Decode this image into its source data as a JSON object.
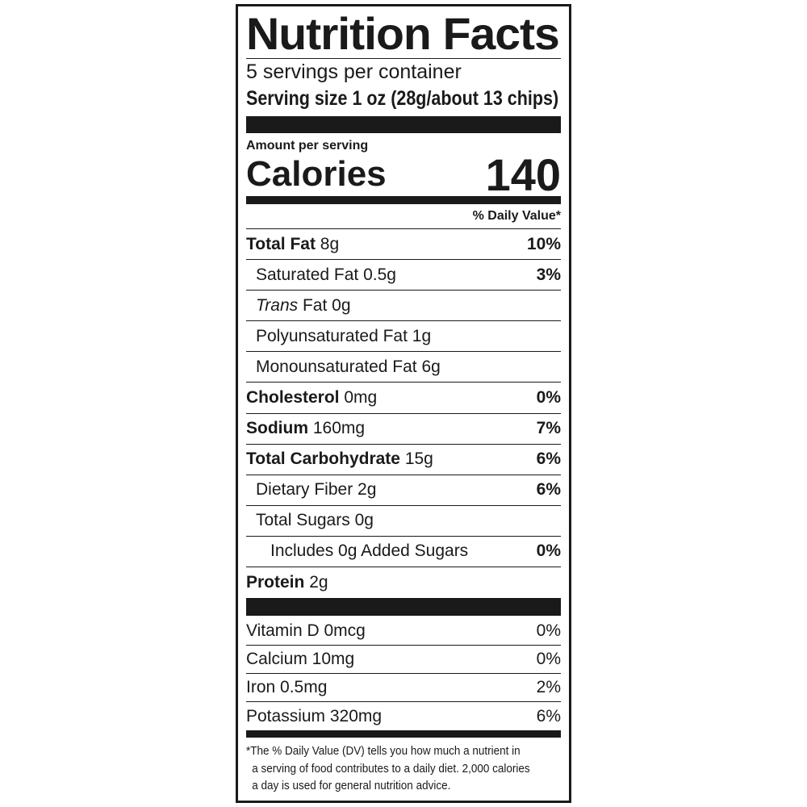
{
  "title": "Nutrition Facts",
  "servings_per_container": "5 servings per container",
  "serving_size": "Serving size 1 oz (28g/about 13 chips)",
  "amount_per_serving": "Amount per serving",
  "calories_label": "Calories",
  "calories_value": "140",
  "dv_header": "% Daily Value*",
  "nutrients": [
    {
      "name": "Total Fat",
      "amount": "8g",
      "dv": "10%",
      "bold": true,
      "indent": 0
    },
    {
      "name": "Saturated Fat",
      "amount": "0.5g",
      "dv": "3%",
      "bold": false,
      "indent": 1
    },
    {
      "name": "Trans",
      "name_suffix": "Fat",
      "amount": "0g",
      "dv": "",
      "bold": false,
      "indent": 1,
      "italic": true
    },
    {
      "name": "Polyunsaturated Fat",
      "amount": "1g",
      "dv": "",
      "bold": false,
      "indent": 1
    },
    {
      "name": "Monounsaturated Fat",
      "amount": "6g",
      "dv": "",
      "bold": false,
      "indent": 1
    },
    {
      "name": "Cholesterol",
      "amount": "0mg",
      "dv": "0%",
      "bold": true,
      "indent": 0
    },
    {
      "name": "Sodium",
      "amount": "160mg",
      "dv": "7%",
      "bold": true,
      "indent": 0
    },
    {
      "name": "Total Carbohydrate",
      "amount": "15g",
      "dv": "6%",
      "bold": true,
      "indent": 0
    },
    {
      "name": "Dietary Fiber",
      "amount": "2g",
      "dv": "6%",
      "bold": false,
      "indent": 1
    },
    {
      "name": "Total Sugars",
      "amount": "0g",
      "dv": "",
      "bold": false,
      "indent": 1
    },
    {
      "name": "Includes 0g Added Sugars",
      "amount": "",
      "dv": "0%",
      "bold": false,
      "indent": 2
    },
    {
      "name": "Protein",
      "amount": "2g",
      "dv": "",
      "bold": true,
      "indent": 0
    }
  ],
  "vitamins": [
    {
      "label": "Vitamin D 0mcg",
      "dv": "0%"
    },
    {
      "label": "Calcium 10mg",
      "dv": "0%"
    },
    {
      "label": "Iron 0.5mg",
      "dv": "2%"
    },
    {
      "label": "Potassium 320mg",
      "dv": "6%"
    }
  ],
  "footnote": [
    "*The % Daily Value (DV) tells you how much a nutrient in",
    "a serving of food contributes to a daily diet. 2,000 calories",
    "a day is used for general nutrition advice."
  ]
}
